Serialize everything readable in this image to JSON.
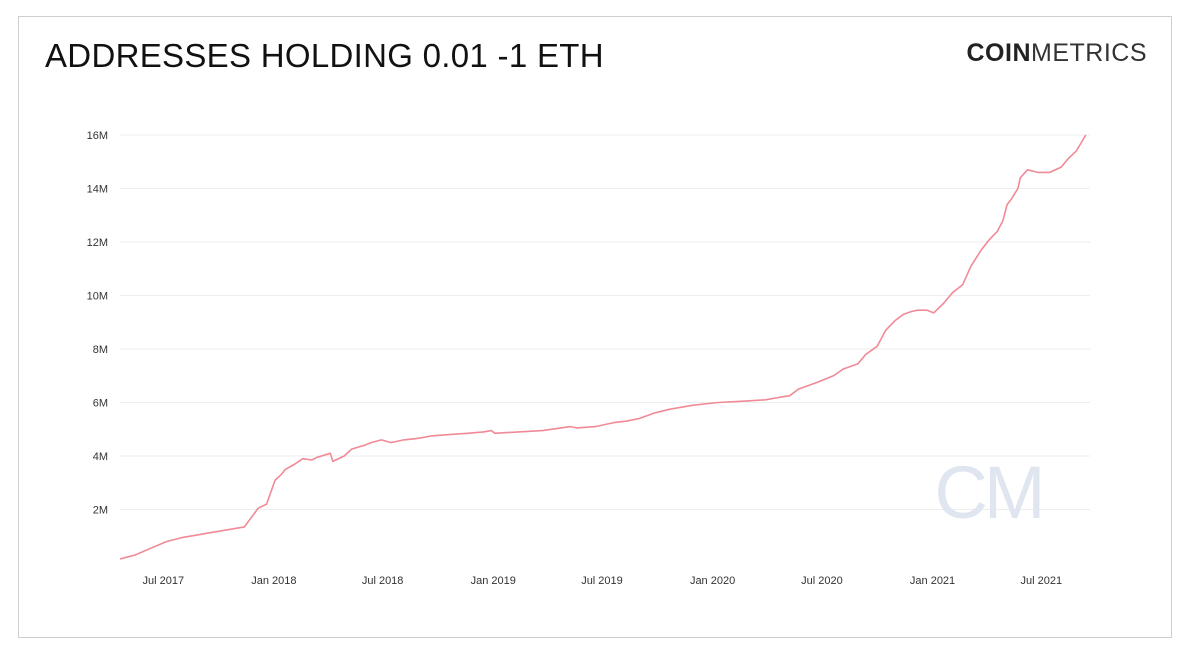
{
  "title": "ADDRESSES HOLDING 0.01 -1 ETH",
  "logo": {
    "bold": "COIN",
    "light": "METRICS",
    "watermark": "CM"
  },
  "colors": {
    "line": "#f08a96",
    "grid": "#eeeeee",
    "watermark": "#dfe6ef"
  },
  "chart_data": {
    "type": "line",
    "title": "ADDRESSES HOLDING 0.01 -1 ETH",
    "xlabel": "",
    "ylabel": "",
    "ylim": [
      0,
      16000000
    ],
    "xlim": [
      "2017-04-20",
      "2021-09-20"
    ],
    "grid": true,
    "y_ticks": [
      {
        "value": 2000000,
        "label": "2M"
      },
      {
        "value": 4000000,
        "label": "4M"
      },
      {
        "value": 6000000,
        "label": "6M"
      },
      {
        "value": 8000000,
        "label": "8M"
      },
      {
        "value": 10000000,
        "label": "10M"
      },
      {
        "value": 12000000,
        "label": "12M"
      },
      {
        "value": 14000000,
        "label": "14M"
      },
      {
        "value": 16000000,
        "label": "16M"
      }
    ],
    "x_ticks": [
      {
        "value": "2017-07-01",
        "label": "Jul 2017"
      },
      {
        "value": "2018-01-01",
        "label": "Jan 2018"
      },
      {
        "value": "2018-07-01",
        "label": "Jul 2018"
      },
      {
        "value": "2019-01-01",
        "label": "Jan 2019"
      },
      {
        "value": "2019-07-01",
        "label": "Jul 2019"
      },
      {
        "value": "2020-01-01",
        "label": "Jan 2020"
      },
      {
        "value": "2020-07-01",
        "label": "Jul 2020"
      },
      {
        "value": "2021-01-01",
        "label": "Jan 2021"
      },
      {
        "value": "2021-07-01",
        "label": "Jul 2021"
      }
    ],
    "series": [
      {
        "x": [
          "2017-04-20",
          "2017-05-15",
          "2017-06-10",
          "2017-07-06",
          "2017-08-01",
          "2017-08-27",
          "2017-09-22",
          "2017-10-18",
          "2017-11-13",
          "2017-12-06",
          "2017-12-20",
          "2018-01-03",
          "2018-01-13",
          "2018-01-20",
          "2018-02-05",
          "2018-02-18",
          "2018-03-05",
          "2018-03-14",
          "2018-04-05",
          "2018-04-09",
          "2018-04-28",
          "2018-05-10",
          "2018-05-24",
          "2018-06-01",
          "2018-06-12",
          "2018-06-29",
          "2018-07-15",
          "2018-08-05",
          "2018-08-26",
          "2018-09-08",
          "2018-09-20",
          "2018-10-20",
          "2018-11-19",
          "2018-12-16",
          "2018-12-29",
          "2019-01-04",
          "2019-02-12",
          "2019-03-24",
          "2019-04-24",
          "2019-05-09",
          "2019-05-20",
          "2019-06-20",
          "2019-07-11",
          "2019-07-21",
          "2019-08-10",
          "2019-09-01",
          "2019-09-25",
          "2019-10-22",
          "2019-11-30",
          "2020-01-10",
          "2020-02-21",
          "2020-03-29",
          "2020-04-23",
          "2020-05-08",
          "2020-05-23",
          "2020-06-23",
          "2020-07-20",
          "2020-08-05",
          "2020-08-30",
          "2020-09-12",
          "2020-10-01",
          "2020-10-15",
          "2020-10-30",
          "2020-11-14",
          "2020-11-27",
          "2020-12-07",
          "2020-12-23",
          "2021-01-03",
          "2021-01-19",
          "2021-02-03",
          "2021-02-20",
          "2021-03-06",
          "2021-03-23",
          "2021-04-06",
          "2021-04-19",
          "2021-04-28",
          "2021-05-05",
          "2021-05-12",
          "2021-05-23",
          "2021-05-27",
          "2021-06-08",
          "2021-06-25",
          "2021-07-15",
          "2021-08-03",
          "2021-08-14",
          "2021-08-28",
          "2021-09-13"
        ],
        "y": [
          150000,
          300000,
          550000,
          800000,
          950000,
          1050000,
          1150000,
          1250000,
          1350000,
          2050000,
          2200000,
          3100000,
          3300000,
          3500000,
          3700000,
          3900000,
          3850000,
          3950000,
          4100000,
          3800000,
          4000000,
          4250000,
          4350000,
          4400000,
          4500000,
          4600000,
          4500000,
          4600000,
          4650000,
          4700000,
          4750000,
          4800000,
          4850000,
          4900000,
          4950000,
          4850000,
          4900000,
          4950000,
          5050000,
          5100000,
          5050000,
          5100000,
          5200000,
          5250000,
          5300000,
          5400000,
          5600000,
          5750000,
          5900000,
          6000000,
          6050000,
          6100000,
          6200000,
          6250000,
          6500000,
          6750000,
          7000000,
          7250000,
          7450000,
          7800000,
          8100000,
          8700000,
          9050000,
          9300000,
          9400000,
          9450000,
          9450000,
          9350000,
          9700000,
          10100000,
          10400000,
          11100000,
          11700000,
          12100000,
          12400000,
          12800000,
          13400000,
          13600000,
          14000000,
          14400000,
          14700000,
          14600000,
          14600000,
          14800000,
          15100000,
          15400000,
          16000000
        ]
      }
    ]
  }
}
